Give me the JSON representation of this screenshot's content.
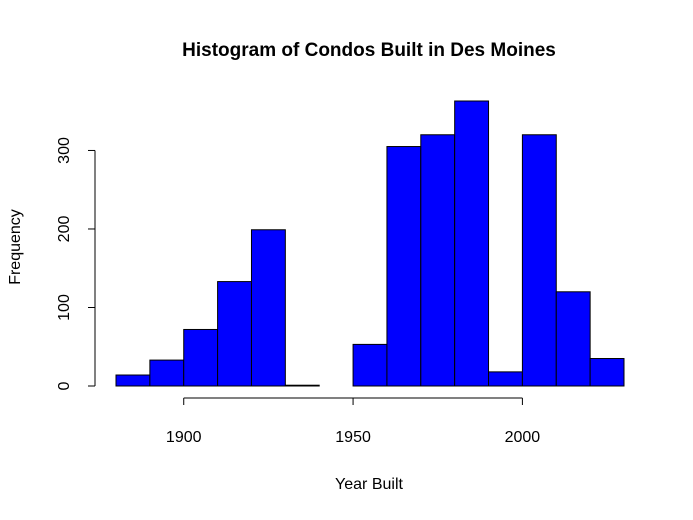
{
  "chart_data": {
    "type": "bar",
    "title": "Histogram of Condos Built in Des Moines",
    "xlabel": "Year Built",
    "ylabel": "Frequency",
    "bin_edges": [
      1880,
      1890,
      1900,
      1910,
      1920,
      1930,
      1940,
      1950,
      1960,
      1970,
      1980,
      1990,
      2000,
      2010,
      2020,
      2030
    ],
    "values": [
      14,
      33,
      72,
      133,
      199,
      1,
      0,
      53,
      305,
      320,
      363,
      18,
      320,
      120,
      35
    ],
    "xlim": [
      1880,
      2030
    ],
    "ylim": [
      0,
      363
    ],
    "x_ticks": [
      1900,
      1950,
      2000
    ],
    "y_ticks": [
      0,
      100,
      200,
      300
    ],
    "x_tick_labels": [
      "1900",
      "1950",
      "2000"
    ],
    "y_tick_labels": [
      "0",
      "100",
      "200",
      "300"
    ],
    "bar_color": "#0000ff",
    "bar_edge_color": "#000000",
    "grid": false
  }
}
